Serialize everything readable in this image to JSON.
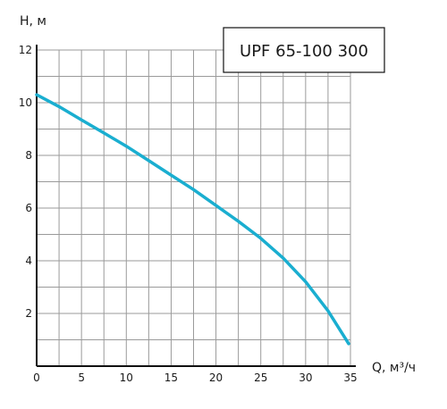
{
  "chart_data": {
    "type": "line",
    "title": "UPF 65-100 300",
    "ylabel": "H, м",
    "xlabel": "Q, м³/ч",
    "xlim": [
      0,
      35
    ],
    "ylim": [
      0,
      12
    ],
    "x_ticks": [
      0,
      5,
      10,
      15,
      20,
      25,
      30,
      35
    ],
    "y_ticks": [
      2,
      4,
      6,
      8,
      10,
      12
    ],
    "x_minor_step": 2.5,
    "y_minor_step": 1,
    "grid": true,
    "colors": {
      "curve": "#1aaed0",
      "grid": "#9a9a9a",
      "axis": "#111111"
    },
    "series": [
      {
        "x": [
          0,
          2.5,
          5,
          7.5,
          10,
          12.5,
          15,
          17.5,
          20,
          22.5,
          25,
          27.5,
          30,
          32.5,
          34.8
        ],
        "y": [
          10.3,
          9.85,
          9.35,
          8.85,
          8.35,
          7.8,
          7.25,
          6.7,
          6.1,
          5.5,
          4.85,
          4.1,
          3.2,
          2.1,
          0.85
        ]
      }
    ]
  }
}
